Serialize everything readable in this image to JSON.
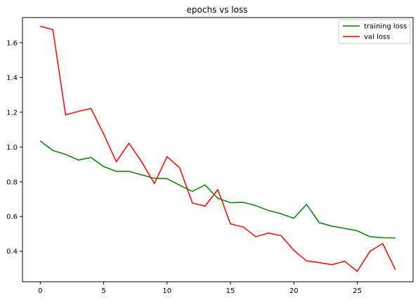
{
  "chart_data": {
    "type": "line",
    "title": "epochs vs loss",
    "xlabel": "",
    "ylabel": "",
    "xlim": [
      -1.4,
      29.4
    ],
    "ylim": [
      0.225,
      1.745
    ],
    "xticks": [
      0,
      5,
      10,
      15,
      20,
      25
    ],
    "xtick_labels": [
      "0",
      "5",
      "10",
      "15",
      "20",
      "25"
    ],
    "yticks": [
      0.4,
      0.6,
      0.8,
      1.0,
      1.2,
      1.4,
      1.6
    ],
    "ytick_labels": [
      "0.4",
      "0.6",
      "0.8",
      "1.0",
      "1.2",
      "1.4",
      "1.6"
    ],
    "grid": false,
    "legend_position": "top-right",
    "x": [
      0,
      1,
      2,
      3,
      4,
      5,
      6,
      7,
      8,
      9,
      10,
      11,
      12,
      13,
      14,
      15,
      16,
      17,
      18,
      19,
      20,
      21,
      22,
      23,
      24,
      25,
      26,
      27,
      28
    ],
    "series": [
      {
        "name": "training loss",
        "color": "#008000",
        "values": [
          1.035,
          0.98,
          0.958,
          0.925,
          0.94,
          0.888,
          0.86,
          0.86,
          0.84,
          0.82,
          0.818,
          0.78,
          0.745,
          0.782,
          0.705,
          0.68,
          0.682,
          0.663,
          0.635,
          0.616,
          0.59,
          0.67,
          0.565,
          0.545,
          0.532,
          0.518,
          0.484,
          0.478,
          0.477
        ]
      },
      {
        "name": "val loss",
        "color": "#ff0000",
        "values": [
          1.695,
          1.675,
          1.185,
          1.205,
          1.222,
          1.075,
          0.915,
          1.022,
          0.915,
          0.79,
          0.945,
          0.88,
          0.678,
          0.66,
          0.755,
          0.558,
          0.54,
          0.484,
          0.505,
          0.49,
          0.405,
          0.345,
          0.335,
          0.323,
          0.343,
          0.285,
          0.4,
          0.445,
          0.295
        ]
      }
    ]
  }
}
